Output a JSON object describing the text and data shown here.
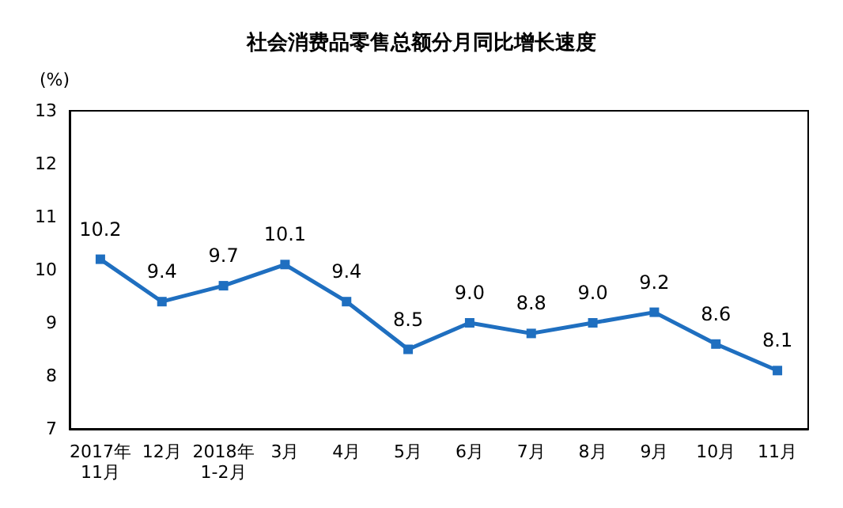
{
  "chart_data": {
    "type": "line",
    "title": "社会消费品零售总额分月同比增长速度",
    "ylabel": "(%)",
    "categories": [
      "2017年\n11月",
      "12月",
      "2018年\n1-2月",
      "3月",
      "4月",
      "5月",
      "6月",
      "7月",
      "8月",
      "9月",
      "10月",
      "11月"
    ],
    "series": [
      {
        "color": "#1f6fc0",
        "values": [
          10.2,
          9.4,
          9.7,
          10.1,
          9.4,
          8.5,
          9.0,
          8.8,
          9.0,
          9.2,
          8.6,
          8.1
        ],
        "value_labels": [
          "10.2",
          "9.4",
          "9.7",
          "10.1",
          "9.4",
          "8.5",
          "9.0",
          "8.8",
          "9.0",
          "9.2",
          "8.6",
          "8.1"
        ]
      }
    ],
    "ylim": [
      7,
      13
    ],
    "yticks": [
      7,
      8,
      9,
      10,
      11,
      12,
      13
    ],
    "grid": false,
    "marker": "square",
    "line_style": "solid"
  }
}
